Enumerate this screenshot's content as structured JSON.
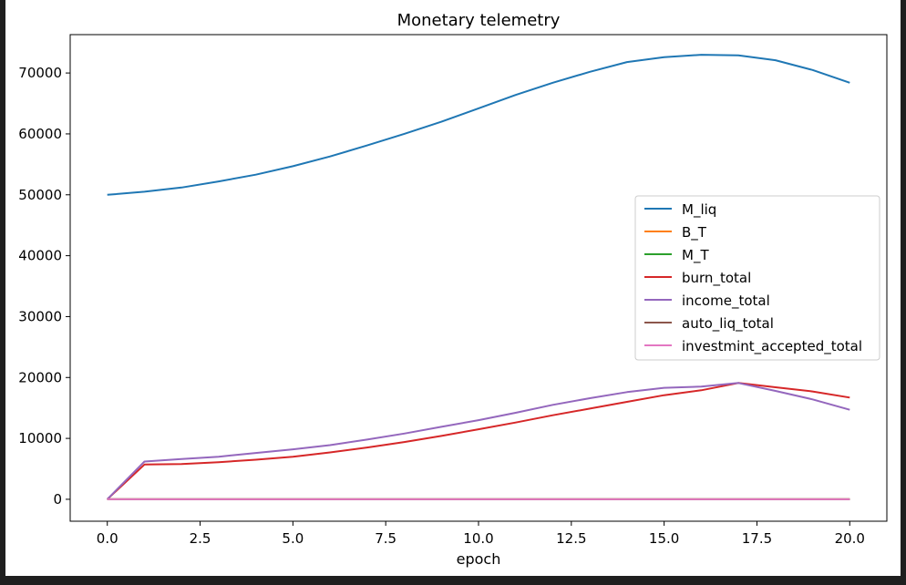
{
  "chart_data": {
    "type": "line",
    "title": "Monetary telemetry",
    "xlabel": "epoch",
    "ylabel": "",
    "xlim": [
      -1.0,
      21.0
    ],
    "ylim": [
      -3600,
      76300
    ],
    "xticks": [
      0.0,
      2.5,
      5.0,
      7.5,
      10.0,
      12.5,
      15.0,
      17.5,
      20.0
    ],
    "xtick_labels": [
      "0.0",
      "2.5",
      "5.0",
      "7.5",
      "10.0",
      "12.5",
      "15.0",
      "17.5",
      "20.0"
    ],
    "yticks": [
      0,
      10000,
      20000,
      30000,
      40000,
      50000,
      60000,
      70000
    ],
    "ytick_labels": [
      "0",
      "10000",
      "20000",
      "30000",
      "40000",
      "50000",
      "60000",
      "70000"
    ],
    "grid": false,
    "legend_position": "center-right",
    "x": [
      0,
      1,
      2,
      3,
      4,
      5,
      6,
      7,
      8,
      9,
      10,
      11,
      12,
      13,
      14,
      15,
      16,
      17,
      18,
      19,
      20
    ],
    "series": [
      {
        "name": "M_liq",
        "color": "#1f77b4",
        "values": [
          50000,
          50500,
          51200,
          52200,
          53300,
          54700,
          56300,
          58100,
          60000,
          62000,
          64200,
          66400,
          68400,
          70200,
          71800,
          72600,
          73000,
          72900,
          72100,
          70500,
          68400
        ]
      },
      {
        "name": "B_T",
        "color": "#ff7f0e",
        "values": [
          0,
          0,
          0,
          0,
          0,
          0,
          0,
          0,
          0,
          0,
          0,
          0,
          0,
          0,
          0,
          0,
          0,
          0,
          0,
          0,
          0
        ]
      },
      {
        "name": "M_T",
        "color": "#2ca02c",
        "values": [
          0,
          0,
          0,
          0,
          0,
          0,
          0,
          0,
          0,
          0,
          0,
          0,
          0,
          0,
          0,
          0,
          0,
          0,
          0,
          0,
          0
        ]
      },
      {
        "name": "burn_total",
        "color": "#d62728",
        "values": [
          0,
          5700,
          5800,
          6100,
          6500,
          7000,
          7700,
          8500,
          9400,
          10400,
          11500,
          12600,
          13800,
          14900,
          16000,
          17100,
          17900,
          19100,
          18400,
          17700,
          16700
        ]
      },
      {
        "name": "income_total",
        "color": "#9467bd",
        "values": [
          0,
          6200,
          6600,
          7000,
          7600,
          8200,
          8900,
          9800,
          10800,
          11900,
          13000,
          14200,
          15500,
          16600,
          17600,
          18300,
          18500,
          19100,
          17800,
          16400,
          14700
        ]
      },
      {
        "name": "auto_liq_total",
        "color": "#8c564b",
        "values": [
          0,
          0,
          0,
          0,
          0,
          0,
          0,
          0,
          0,
          0,
          0,
          0,
          0,
          0,
          0,
          0,
          0,
          0,
          0,
          0,
          0
        ]
      },
      {
        "name": "investmint_accepted_total",
        "color": "#e377c2",
        "values": [
          0,
          0,
          0,
          0,
          0,
          0,
          0,
          0,
          0,
          0,
          0,
          0,
          0,
          0,
          0,
          0,
          0,
          0,
          0,
          0,
          0
        ]
      }
    ]
  }
}
